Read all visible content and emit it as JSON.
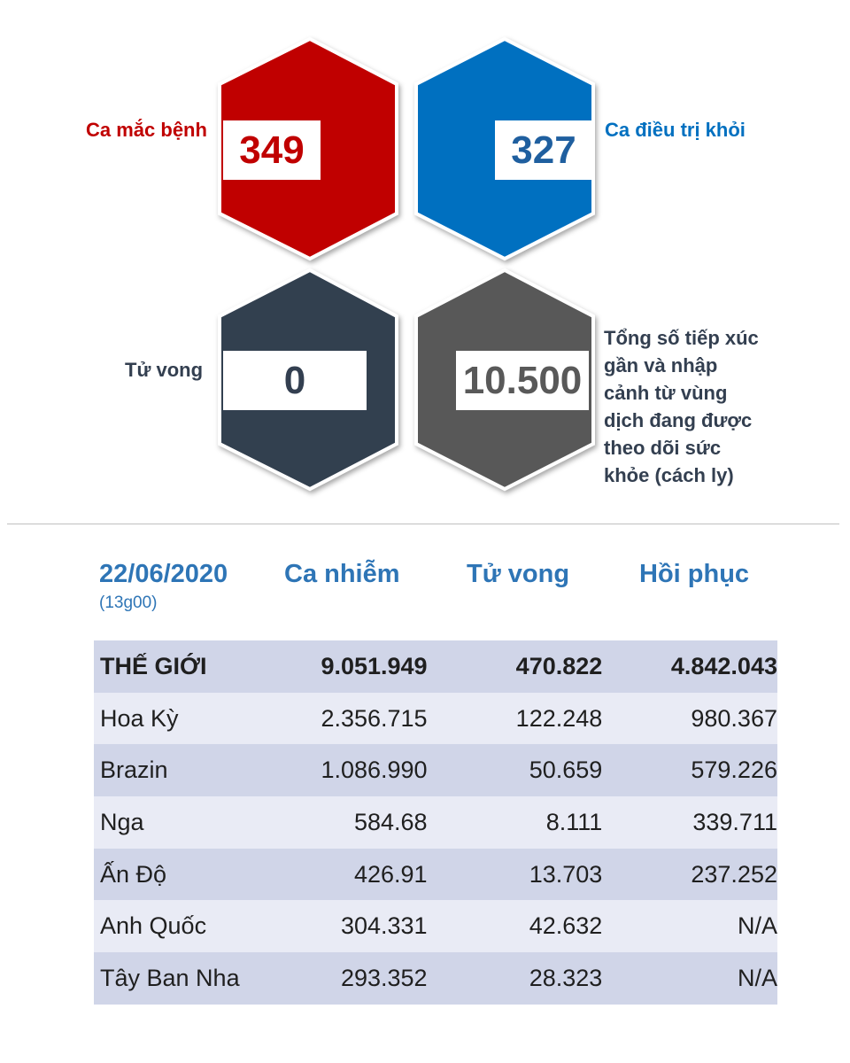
{
  "stats": {
    "cases": {
      "label": "Ca mắc bệnh",
      "value": "349",
      "color": "#c00000"
    },
    "recovered": {
      "label": "Ca điều trị khỏi",
      "value": "327",
      "color": "#0070c0"
    },
    "deaths": {
      "label": "Tử vong",
      "value": "0",
      "color": "#333f50"
    },
    "monitored": {
      "label_lines": [
        "Tổng số tiếp xúc",
        "gần và nhập",
        "cảnh từ vùng",
        "dịch đang được",
        "theo dõi sức",
        "khỏe (cách ly)"
      ],
      "value": "10.500",
      "color": "#595959"
    }
  },
  "table": {
    "date": "22/06/2020",
    "time": "(13g00)",
    "headers": [
      "Ca nhiễm",
      "Tử vong",
      "Hồi phục"
    ],
    "rows": [
      {
        "name": "THẾ GIỚI",
        "infected": "9.051.949",
        "deaths": "470.822",
        "recovered": "4.842.043"
      },
      {
        "name": "Hoa Kỳ",
        "infected": "2.356.715",
        "deaths": "122.248",
        "recovered": "980.367"
      },
      {
        "name": "Brazin",
        "infected": "1.086.990",
        "deaths": "50.659",
        "recovered": "579.226"
      },
      {
        "name": "Nga",
        "infected": "584.68",
        "deaths": "8.111",
        "recovered": "339.711"
      },
      {
        "name": "Ấn Độ",
        "infected": "426.91",
        "deaths": "13.703",
        "recovered": "237.252"
      },
      {
        "name": "Anh Quốc",
        "infected": "304.331",
        "deaths": "42.632",
        "recovered": "N/A"
      },
      {
        "name": "Tây Ban Nha",
        "infected": "293.352",
        "deaths": "28.323",
        "recovered": "N/A"
      }
    ]
  }
}
